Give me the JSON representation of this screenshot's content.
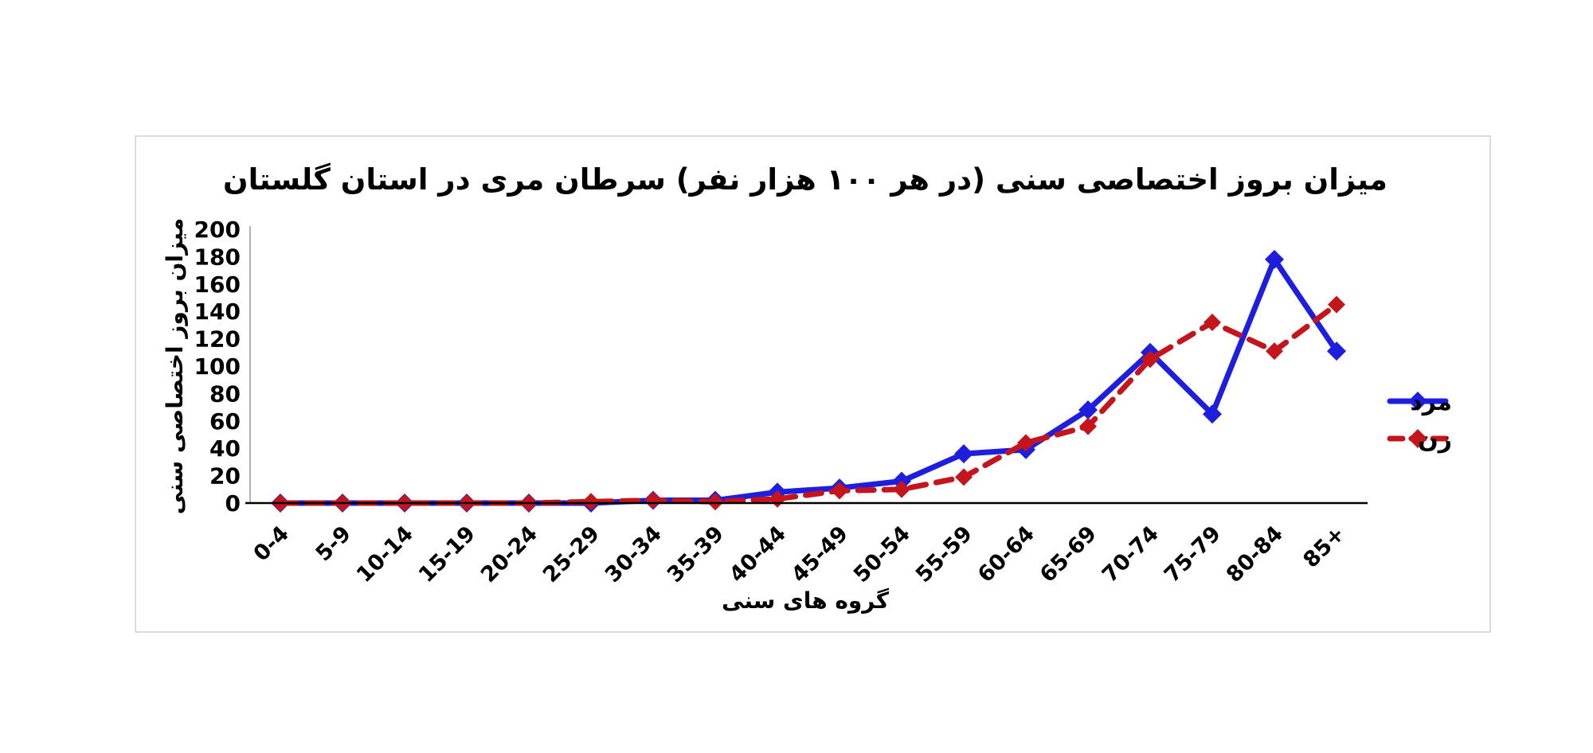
{
  "chart_data": {
    "type": "line",
    "title": "میزان بروز اختصاصی سنی (در هر ۱۰۰ هزار نفر) سرطان مری در استان گلستان",
    "xlabel": "گروه های سنی",
    "ylabel": "میزان بروز اختصاصی سنی",
    "categories": [
      "0-4",
      "5-9",
      "10-14",
      "15-19",
      "20-24",
      "25-29",
      "30-34",
      "35-39",
      "40-44",
      "45-49",
      "50-54",
      "55-59",
      "60-64",
      "65-69",
      "70-74",
      "75-79",
      "80-84",
      "85+"
    ],
    "series": [
      {
        "name": "مرد",
        "color": "#1e1fde",
        "line_style": "solid",
        "marker": "diamond",
        "values": [
          0,
          0,
          0,
          0,
          0,
          0,
          2,
          2,
          8,
          11,
          16,
          36,
          39,
          68,
          110,
          65,
          178,
          111
        ]
      },
      {
        "name": "زن",
        "color": "#c4151c",
        "line_style": "dashed",
        "marker": "diamond",
        "values": [
          0,
          0,
          0,
          0,
          0,
          1,
          2,
          1,
          3,
          9,
          10,
          19,
          44,
          56,
          105,
          132,
          111,
          145
        ]
      }
    ],
    "ylim": [
      0,
      200
    ],
    "yticks": [
      0,
      20,
      40,
      60,
      80,
      100,
      120,
      140,
      160,
      180,
      200
    ],
    "grid": false,
    "legend_position": "right",
    "axis_color": "#000000",
    "frame_color": "#dcdcdc"
  }
}
